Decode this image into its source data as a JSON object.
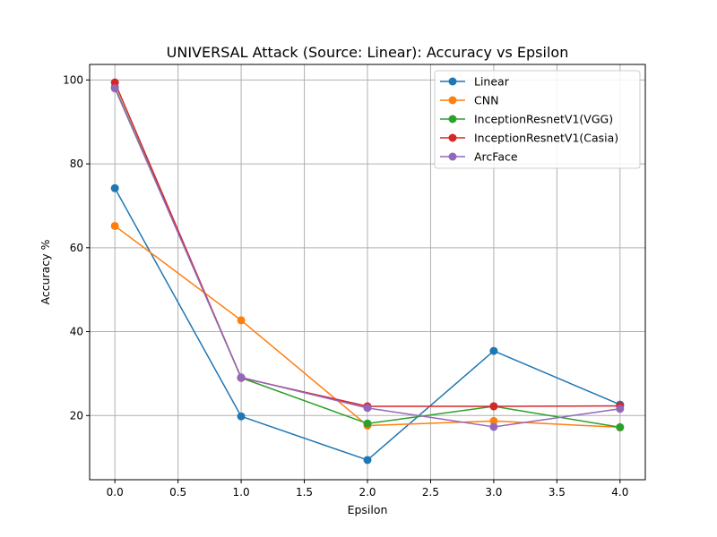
{
  "chart_data": {
    "type": "line",
    "title": "UNIVERSAL Attack (Source: Linear): Accuracy vs Epsilon",
    "xlabel": "Epsilon",
    "ylabel": "Accuracy %",
    "x": [
      0.0,
      1.0,
      2.0,
      3.0,
      4.0
    ],
    "xlim": [
      -0.2,
      4.2
    ],
    "ylim": [
      4.7,
      103.7
    ],
    "xticks": [
      0.0,
      0.5,
      1.0,
      1.5,
      2.0,
      2.5,
      3.0,
      3.5,
      4.0
    ],
    "xtick_labels": [
      "0.0",
      "0.5",
      "1.0",
      "1.5",
      "2.0",
      "2.5",
      "3.0",
      "3.5",
      "4.0"
    ],
    "yticks": [
      20,
      40,
      60,
      80,
      100
    ],
    "ytick_labels": [
      "20",
      "40",
      "60",
      "80",
      "100"
    ],
    "grid": true,
    "legend_position": "top-right",
    "series": [
      {
        "name": "Linear",
        "color": "#1f77b4",
        "values": [
          74.2,
          19.8,
          9.4,
          35.4,
          22.6
        ]
      },
      {
        "name": "CNN",
        "color": "#ff7f0e",
        "values": [
          65.2,
          42.7,
          17.6,
          18.7,
          17.2
        ]
      },
      {
        "name": "InceptionResnetV1(VGG)",
        "color": "#2ca02c",
        "values": [
          98.3,
          29.0,
          18.1,
          22.2,
          17.2
        ]
      },
      {
        "name": "InceptionResnetV1(Casia)",
        "color": "#d62728",
        "values": [
          99.4,
          29.0,
          22.2,
          22.2,
          22.3
        ]
      },
      {
        "name": "ArcFace",
        "color": "#9467bd",
        "values": [
          98.0,
          29.1,
          21.8,
          17.3,
          21.6
        ]
      }
    ]
  }
}
